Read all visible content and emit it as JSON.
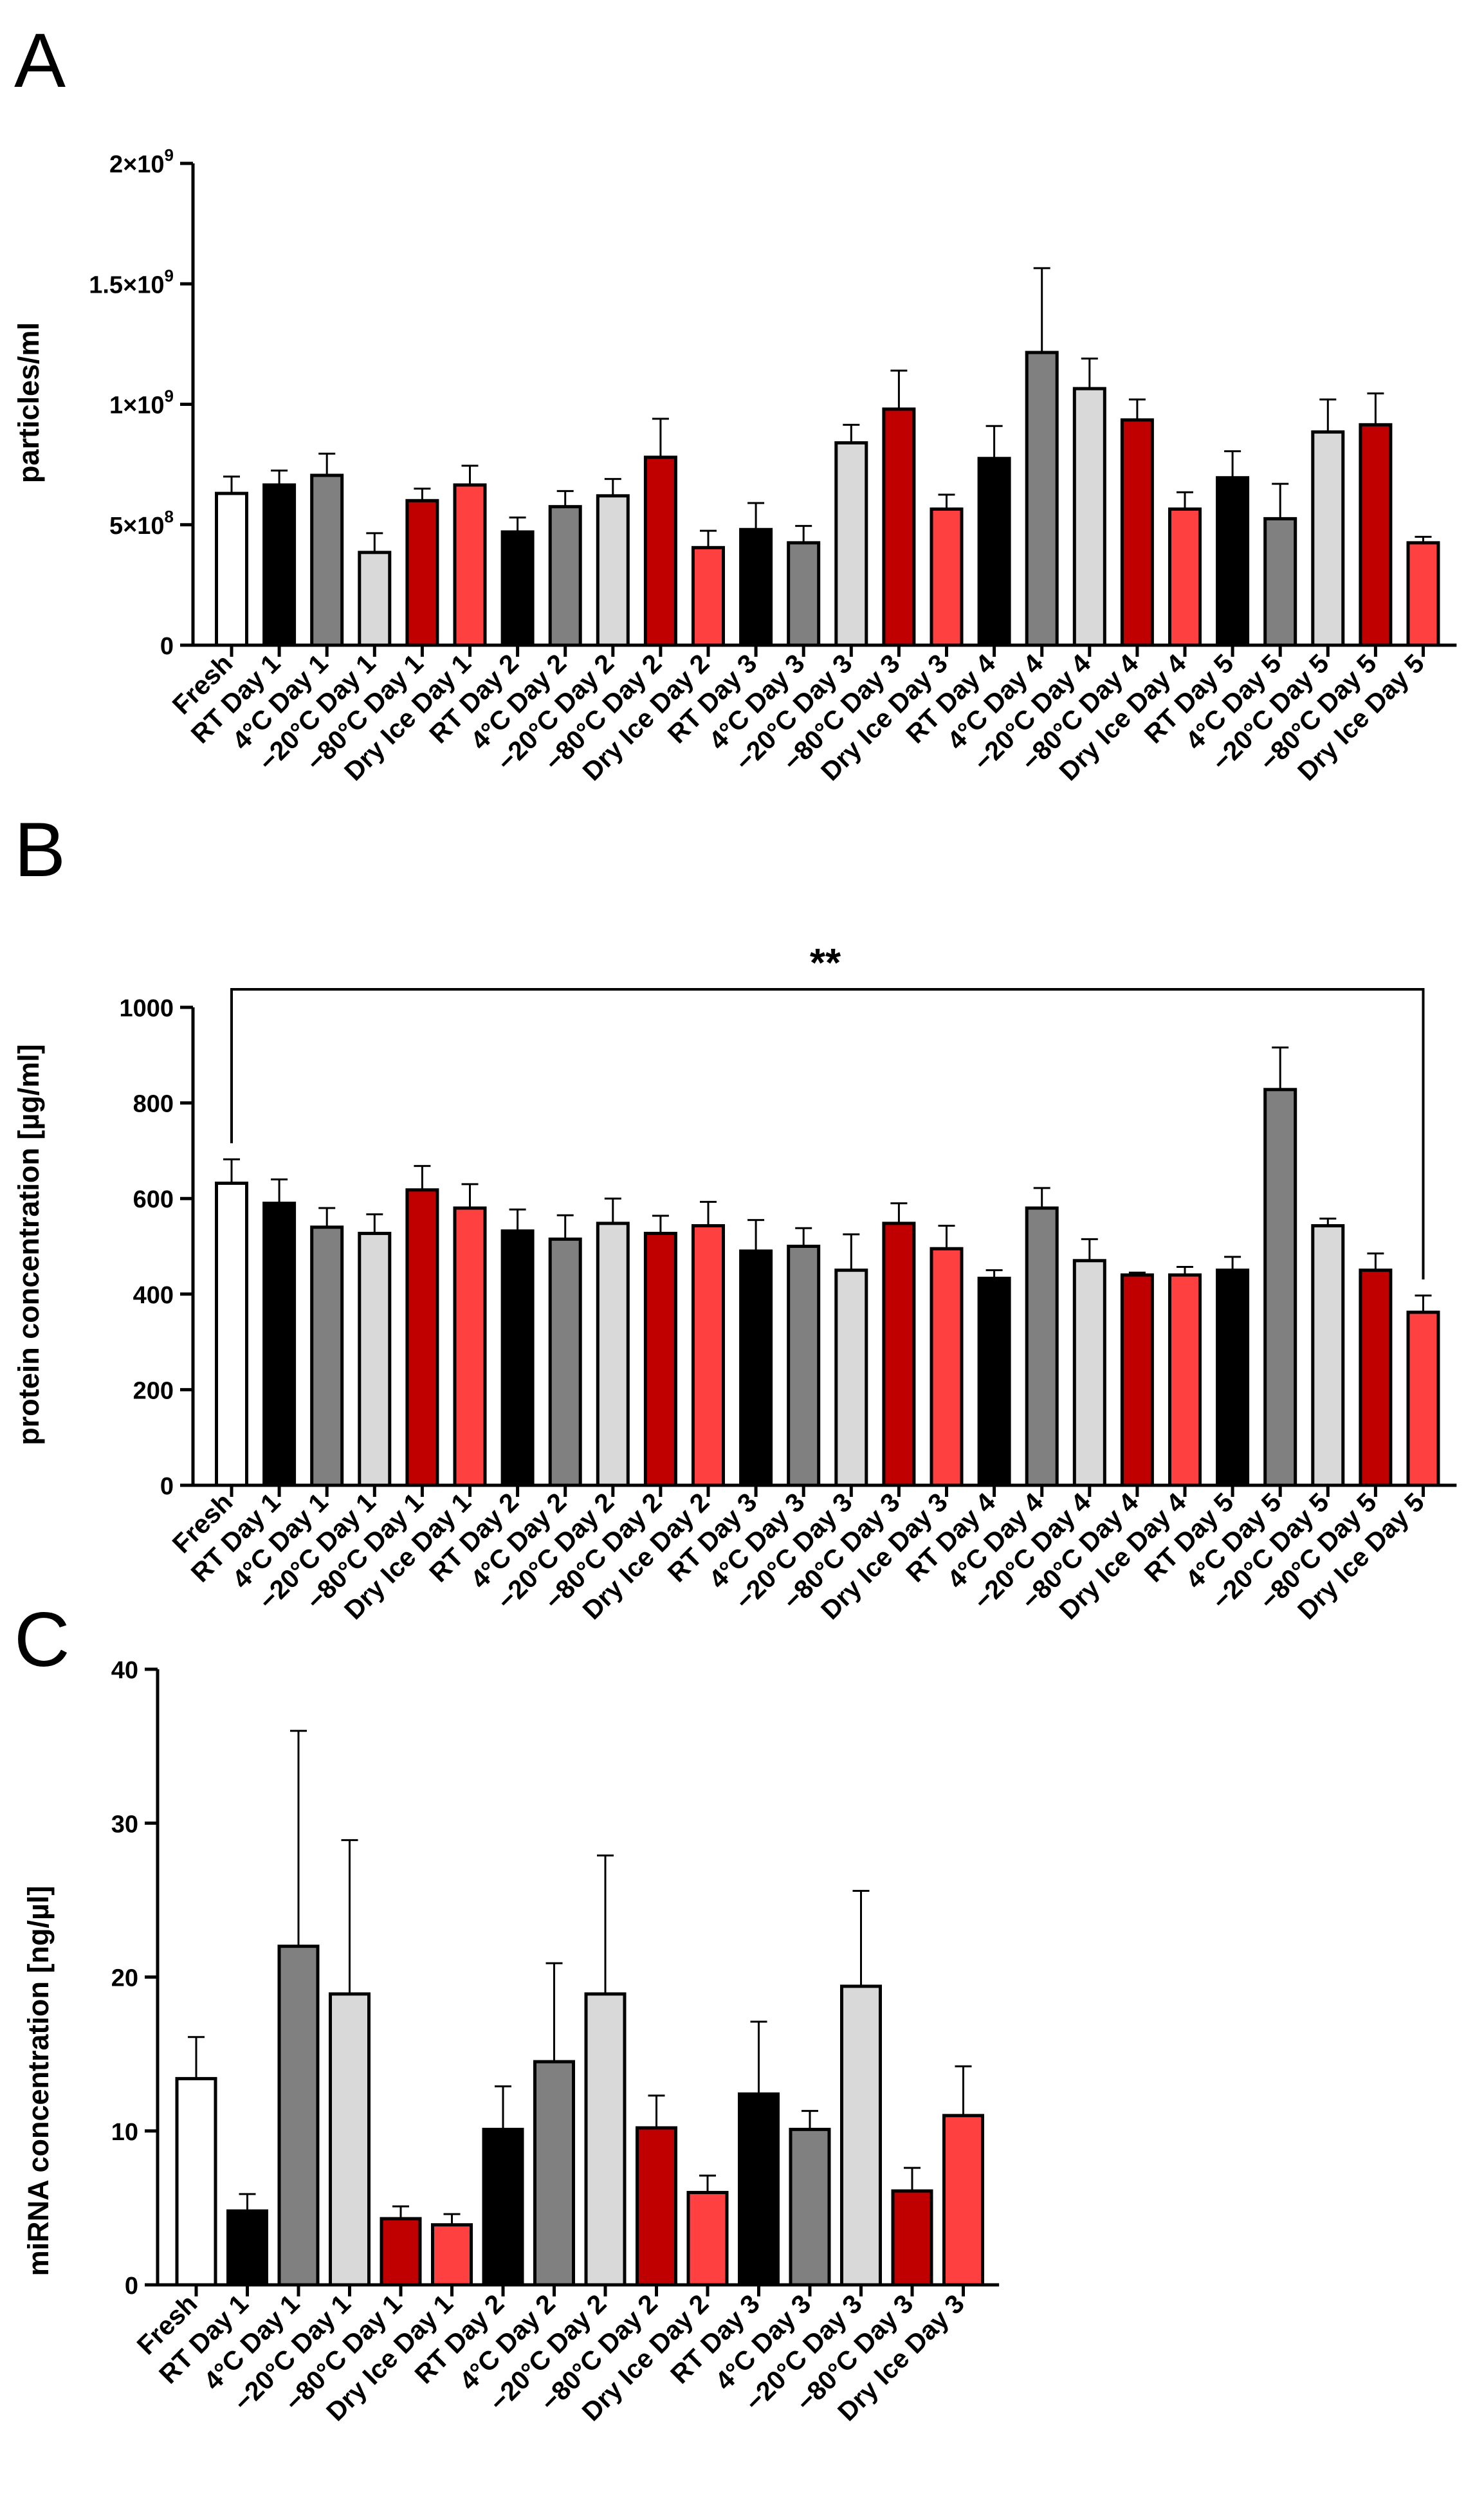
{
  "palette": {
    "Fresh": "#ffffff",
    "RT": "#000000",
    "4C": "#808080",
    "-20C": "#d9d9d9",
    "-80C": "#c00000",
    "DryIce": "#ff4040"
  },
  "chart_data": [
    {
      "panel": "A",
      "type": "bar",
      "title": "",
      "xlabel": "",
      "ylabel": "particles/ml",
      "ylim": [
        0,
        2000000000
      ],
      "yticks": [
        0,
        500000000,
        1000000000,
        1500000000,
        2000000000
      ],
      "ytick_labels": [
        {
          "value": 0,
          "mant": "0",
          "exp": ""
        },
        {
          "value": 500000000,
          "mant": "5×10",
          "exp": "8"
        },
        {
          "value": 1000000000,
          "mant": "1×10",
          "exp": "9"
        },
        {
          "value": 1500000000,
          "mant": "1.5×10",
          "exp": "9"
        },
        {
          "value": 2000000000,
          "mant": "2×10",
          "exp": "9"
        }
      ],
      "categories": [
        "Fresh",
        "RT Day 1",
        "4°C Day 1",
        "−20°C Day 1",
        "−80°C Day 1",
        "Dry Ice Day 1",
        "RT Day 2",
        "4°C Day 2",
        "−20°C Day 2",
        "−80°C Day 2",
        "Dry Ice Day 2",
        "RT Day 3",
        "4°C Day 3",
        "−20°C Day 3",
        "−80°C Day 3",
        "Dry Ice Day 3",
        "RT Day 4",
        "4°C Day 4",
        "−20°C Day 4",
        "−80°C Day 4",
        "Dry Ice Day 4",
        "RT Day 5",
        "4°C Day 5",
        "−20°C Day 5",
        "−80°C Day 5",
        "Dry Ice Day 5"
      ],
      "groups": [
        "Fresh",
        "RT",
        "4C",
        "-20C",
        "-80C",
        "DryIce",
        "RT",
        "4C",
        "-20C",
        "-80C",
        "DryIce",
        "RT",
        "4C",
        "-20C",
        "-80C",
        "DryIce",
        "RT",
        "4C",
        "-20C",
        "-80C",
        "DryIce",
        "RT",
        "4C",
        "-20C",
        "-80C",
        "DryIce"
      ],
      "values": [
        630000000,
        665000000,
        705000000,
        385000000,
        600000000,
        665000000,
        470000000,
        575000000,
        620000000,
        780000000,
        405000000,
        480000000,
        425000000,
        840000000,
        980000000,
        565000000,
        775000000,
        1215000000,
        1065000000,
        935000000,
        565000000,
        695000000,
        525000000,
        885000000,
        915000000,
        425000000
      ],
      "errors": [
        70000000,
        60000000,
        90000000,
        80000000,
        50000000,
        80000000,
        60000000,
        65000000,
        70000000,
        160000000,
        70000000,
        110000000,
        70000000,
        75000000,
        160000000,
        60000000,
        135000000,
        350000000,
        125000000,
        85000000,
        70000000,
        110000000,
        145000000,
        135000000,
        130000000,
        25000000
      ]
    },
    {
      "panel": "B",
      "type": "bar",
      "title": "",
      "xlabel": "",
      "ylabel": "protein concentration [µg/ml]",
      "ylim": [
        0,
        1000
      ],
      "yticks": [
        0,
        200,
        400,
        600,
        800,
        1000
      ],
      "categories": [
        "Fresh",
        "RT Day 1",
        "4°C Day 1",
        "−20°C Day 1",
        "−80°C Day 1",
        "Dry Ice Day 1",
        "RT Day 2",
        "4°C Day 2",
        "−20°C Day 2",
        "−80°C Day 2",
        "Dry Ice Day 2",
        "RT Day 3",
        "4°C Day 3",
        "−20°C Day 3",
        "−80°C Day 3",
        "Dry Ice Day 3",
        "RT Day 4",
        "4°C Day 4",
        "−20°C Day 4",
        "−80°C Day 4",
        "Dry Ice Day 4",
        "RT Day 5",
        "4°C Day 5",
        "−20°C Day 5",
        "−80°C Day 5",
        "Dry Ice Day 5"
      ],
      "groups": [
        "Fresh",
        "RT",
        "4C",
        "-20C",
        "-80C",
        "DryIce",
        "RT",
        "4C",
        "-20C",
        "-80C",
        "DryIce",
        "RT",
        "4C",
        "-20C",
        "-80C",
        "DryIce",
        "RT",
        "4C",
        "-20C",
        "-80C",
        "DryIce",
        "RT",
        "4C",
        "-20C",
        "-80C",
        "DryIce"
      ],
      "values": [
        632,
        590,
        540,
        527,
        618,
        580,
        532,
        515,
        548,
        527,
        543,
        490,
        500,
        450,
        548,
        495,
        433,
        580,
        470,
        440,
        440,
        450,
        828,
        543,
        450,
        362
      ],
      "errors": [
        50,
        50,
        40,
        40,
        50,
        50,
        45,
        50,
        52,
        37,
        50,
        65,
        38,
        75,
        42,
        48,
        17,
        42,
        45,
        5,
        17,
        28,
        88,
        15,
        35,
        35
      ],
      "annotation": {
        "text": "**",
        "from": "Fresh",
        "to": "Dry Ice Day 5"
      }
    },
    {
      "panel": "C",
      "type": "bar",
      "title": "",
      "xlabel": "",
      "ylabel": "miRNA concentration [ng/µl]",
      "ylim": [
        0,
        40
      ],
      "yticks": [
        0,
        10,
        20,
        30,
        40
      ],
      "categories": [
        "Fresh",
        "RT Day 1",
        "4°C Day 1",
        "−20°C Day 1",
        "−80°C Day 1",
        "Dry Ice Day 1",
        "RT Day 2",
        "4°C Day 2",
        "−20°C Day 2",
        "−80°C Day 2",
        "Dry Ice Day 2",
        "RT Day 3",
        "4°C Day 3",
        "−20°C Day 3",
        "−80°C Day 3",
        "Dry Ice Day 3"
      ],
      "groups": [
        "Fresh",
        "RT",
        "4C",
        "-20C",
        "-80C",
        "DryIce",
        "RT",
        "4C",
        "-20C",
        "-80C",
        "DryIce",
        "RT",
        "4C",
        "-20C",
        "-80C",
        "DryIce"
      ],
      "values": [
        13.4,
        4.8,
        22.0,
        18.9,
        4.3,
        3.9,
        10.1,
        14.5,
        18.9,
        10.2,
        6.0,
        12.4,
        10.1,
        19.4,
        6.1,
        11.0
      ],
      "errors": [
        2.7,
        1.1,
        14.0,
        10.0,
        0.8,
        0.7,
        2.8,
        6.4,
        9.0,
        2.1,
        1.1,
        4.7,
        1.2,
        6.2,
        1.5,
        3.2
      ]
    }
  ]
}
